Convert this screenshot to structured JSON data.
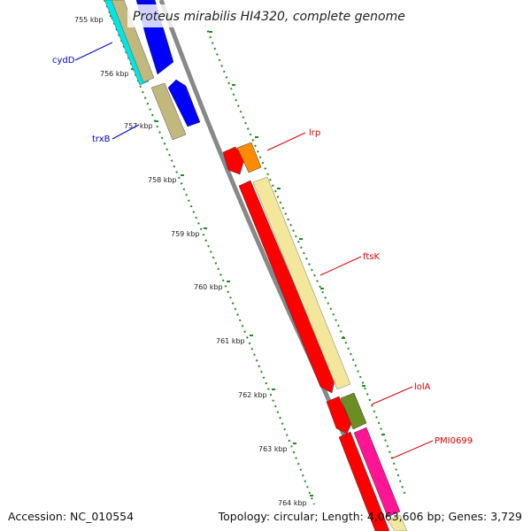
{
  "title": "Proteus mirabilis HI4320, complete genome",
  "footer": {
    "accession": "Accession: NC_010554",
    "summary": "Topology: circular; Length: 4,063,606 bp; Genes: 3,729"
  },
  "ticks": [
    "755 kbp",
    "756 kbp",
    "757 kbp",
    "758 kbp",
    "759 kbp",
    "760 kbp",
    "761 kbp",
    "762 kbp",
    "763 kbp",
    "764 kbp"
  ],
  "genes": {
    "cydD": {
      "label": "cydD",
      "strand": "reverse"
    },
    "trxB": {
      "label": "trxB",
      "strand": "reverse"
    },
    "lrp": {
      "label": "lrp",
      "strand": "forward"
    },
    "ftsK": {
      "label": "ftsK",
      "strand": "forward"
    },
    "lolA": {
      "label": "lolA",
      "strand": "forward"
    },
    "PMI0699": {
      "label": "PMI0699",
      "strand": "forward"
    }
  },
  "colors": {
    "reverse_label": "#0000cc",
    "forward_label": "#dd0000",
    "backbone": "#888888",
    "tick": "#1e8c1e",
    "cds_red": "#ff0000",
    "cds_blue": "#0000ff",
    "khaki": "#c2b87e",
    "pale_yellow": "#f2e79a",
    "cyan": "#00e5e5",
    "orange": "#ff8c00",
    "olive": "#6b8e23",
    "pink": "#ff1493"
  }
}
